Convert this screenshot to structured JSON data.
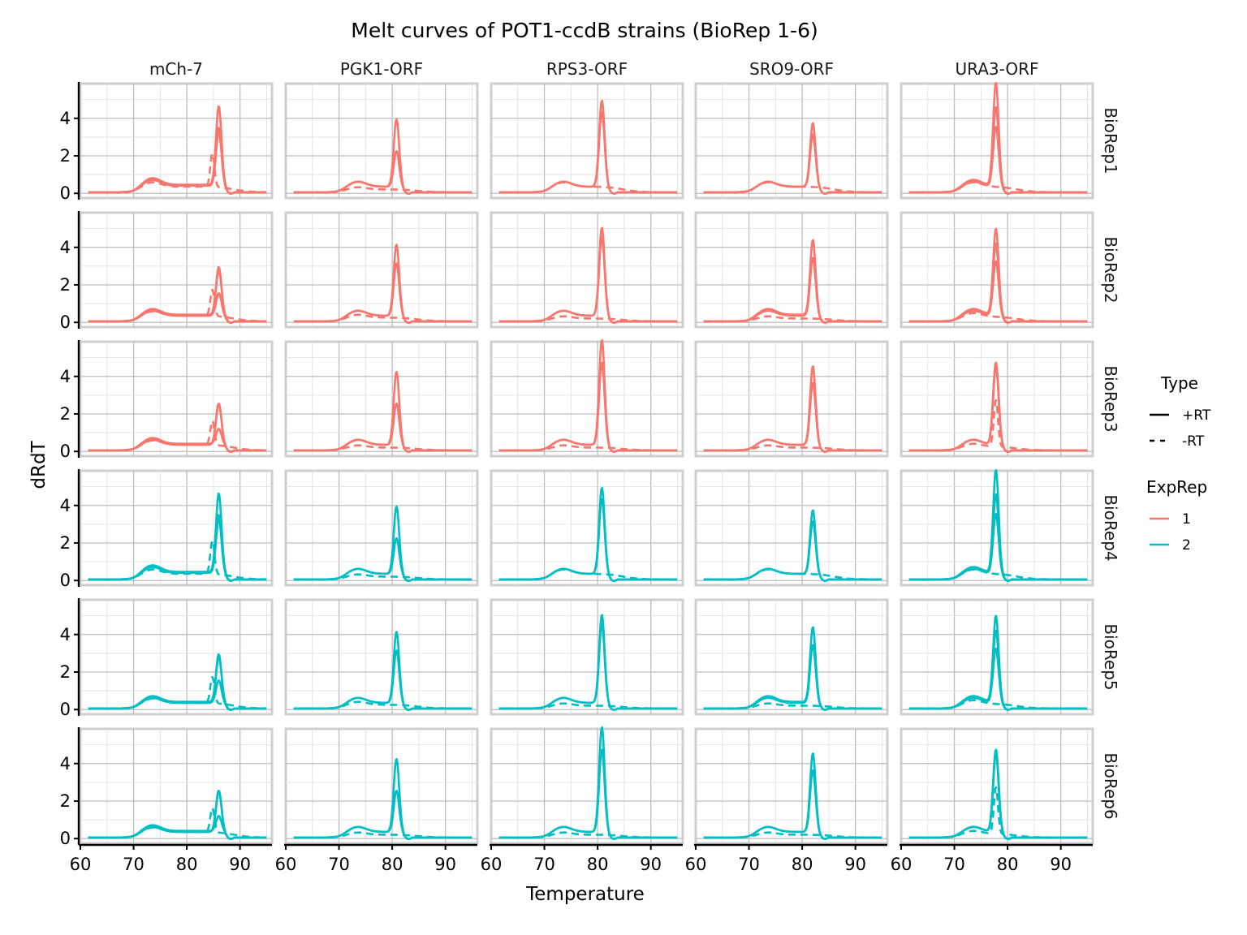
{
  "chart_data": {
    "type": "line",
    "title": "Melt curves of POT1-ccdB strains (BioRep 1-6)",
    "xlabel": "Temperature",
    "ylabel": "dRdT",
    "xlim": [
      60,
      96
    ],
    "ylim": [
      -0.25,
      5.85
    ],
    "x_ticks": [
      60,
      70,
      80,
      90
    ],
    "y_ticks": [
      0,
      2,
      4
    ],
    "grid": true,
    "legend_placement": "right",
    "columns": [
      "mCh-7",
      "PGK1-ORF",
      "RPS3-ORF",
      "SRO9-ORF",
      "URA3-ORF"
    ],
    "rows": [
      "BioRep1",
      "BioRep2",
      "BioRep3",
      "BioRep4",
      "BioRep5",
      "BioRep6"
    ],
    "row_exprep": [
      "1",
      "1",
      "1",
      "2",
      "2",
      "2"
    ],
    "colors": {
      "1": "#F8766D",
      "2": "#00BFC4"
    },
    "legend": {
      "type": {
        "title": "Type",
        "items": [
          {
            "label": "+RT",
            "style": "solid"
          },
          {
            "label": "-RT",
            "style": "dashed"
          }
        ]
      },
      "exprep": {
        "title": "ExpRep",
        "items": [
          {
            "label": "1",
            "color": "#F8766D"
          },
          {
            "label": "2",
            "color": "#00BFC4"
          }
        ]
      }
    },
    "x_range": [
      61.5,
      95
    ],
    "panels": {
      "mCh-7": [
        {
          "type": "+RT",
          "tm": 86,
          "peaks": [
            4.2,
            1.2,
            0.8
          ],
          "plateau": [
            0.4,
            0.3,
            0.35
          ]
        },
        {
          "type": "+RT",
          "tm": 86,
          "peaks": [
            2.9,
            2.4,
            2.2
          ],
          "plateau": [
            0.35,
            0.35,
            0.3
          ]
        },
        {
          "type": "+RT",
          "tm": 86,
          "peaks": [
            3.1,
            2.6,
            2.2
          ],
          "plateau": [
            0.35,
            0.3,
            0.3
          ]
        },
        {
          "type": "-RT",
          "tm": 84.8,
          "peaks": [
            1.8,
            1.4,
            1.3
          ],
          "plateau": [
            0.3,
            0.3,
            0.3
          ]
        }
      ],
      "PGK1-ORF": [
        {
          "type": "+RT",
          "tm": 80.8,
          "peaks": [
            3.6,
            3.8,
            3.9
          ],
          "plateau": [
            0.3,
            0.3,
            0.3
          ]
        },
        {
          "type": "+RT",
          "tm": 80.8,
          "peaks": [
            1.9,
            2.8,
            2.2
          ],
          "plateau": [
            0.3,
            0.3,
            0.3
          ]
        },
        {
          "type": "-RT",
          "tm": 80.8,
          "peaks": [
            0,
            0,
            0
          ],
          "plateau": [
            0.15,
            0.2,
            0.15
          ]
        }
      ],
      "RPS3-ORF": [
        {
          "type": "+RT",
          "tm": 80.8,
          "peaks": [
            4.6,
            4.7,
            5.6
          ],
          "plateau": [
            0.3,
            0.3,
            0.3
          ]
        },
        {
          "type": "+RT",
          "tm": 80.8,
          "peaks": [
            4.0,
            4.2,
            4.4
          ],
          "plateau": [
            0.3,
            0.3,
            0.3
          ]
        },
        {
          "type": "-RT",
          "tm": 80.8,
          "peaks": [
            0,
            0,
            0
          ],
          "plateau": [
            0.3,
            0.15,
            0.15
          ]
        }
      ],
      "SRO9-ORF": [
        {
          "type": "+RT",
          "tm": 82,
          "peaks": [
            3.4,
            4.0,
            4.2
          ],
          "plateau": [
            0.3,
            0.35,
            0.3
          ]
        },
        {
          "type": "+RT",
          "tm": 82,
          "peaks": [
            2.8,
            3.1,
            3.3
          ],
          "plateau": [
            0.3,
            0.3,
            0.3
          ]
        },
        {
          "type": "-RT",
          "tm": 82,
          "peaks": [
            0,
            0,
            0
          ],
          "plateau": [
            0.3,
            0.15,
            0.15
          ]
        }
      ],
      "URA3-ORF": [
        {
          "type": "+RT",
          "tm": 77.8,
          "peaks": [
            5.5,
            4.6,
            4.4
          ],
          "plateau": [
            0.35,
            0.35,
            0.3
          ]
        },
        {
          "type": "+RT",
          "tm": 77.8,
          "peaks": [
            4.2,
            3.8,
            4.3
          ],
          "plateau": [
            0.35,
            0.35,
            0.3
          ]
        },
        {
          "type": "+RT",
          "tm": 77.8,
          "peaks": [
            3.2,
            2.9,
            4.2
          ],
          "plateau": [
            0.3,
            0.3,
            0.3
          ]
        },
        {
          "type": "-RT",
          "tm": 77.8,
          "peaks": [
            0,
            0,
            2.5
          ],
          "plateau": [
            0.3,
            0.25,
            0.2
          ]
        }
      ]
    }
  }
}
